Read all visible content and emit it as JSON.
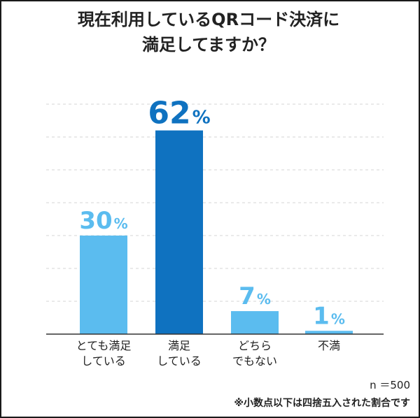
{
  "title": {
    "line1": "現在利用しているQRコード決済に",
    "line2": "満足してますか？"
  },
  "chart_data": {
    "type": "bar",
    "categories": [
      [
        "とても満足",
        "している"
      ],
      [
        "満足",
        "している"
      ],
      [
        "どちら",
        "でもない"
      ],
      [
        "不満"
      ]
    ],
    "values": [
      30,
      62,
      7,
      1
    ],
    "value_labels": [
      "30",
      "62",
      "7",
      "1"
    ],
    "unit": "%",
    "colors": [
      "#5bbcef",
      "#0f72c0",
      "#5bbcef",
      "#5bbcef"
    ],
    "label_colors": [
      "#5bbcef",
      "#0f72c0",
      "#5bbcef",
      "#5bbcef"
    ],
    "ylim": [
      0,
      70
    ],
    "grid": true,
    "title": "現在利用しているQRコード決済に満足してますか？",
    "xlabel": "",
    "ylabel": ""
  },
  "notes": {
    "sample": "n ＝500",
    "rounding": "※小数点以下は四捨五入された割合です"
  }
}
